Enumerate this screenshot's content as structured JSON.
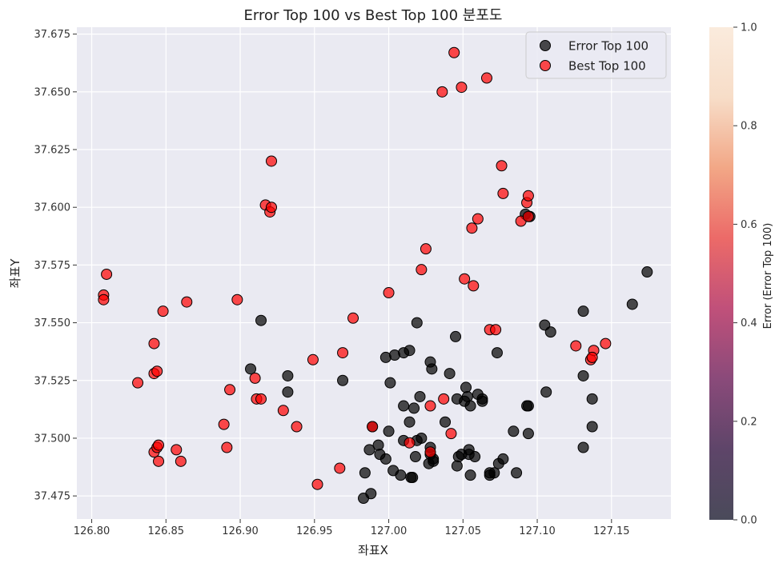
{
  "chart_data": {
    "type": "scatter",
    "title": "Error Top 100 vs Best Top 100 분포도",
    "xlabel": "좌표X",
    "ylabel": "좌표Y",
    "xlim": [
      126.79,
      127.19
    ],
    "ylim": [
      37.465,
      37.678
    ],
    "x_ticks": [
      126.8,
      126.85,
      126.9,
      126.95,
      127.0,
      127.05,
      127.1,
      127.15
    ],
    "x_tick_labels": [
      "126.80",
      "126.85",
      "126.90",
      "126.95",
      "127.00",
      "127.05",
      "127.10",
      "127.15"
    ],
    "y_ticks": [
      37.475,
      37.5,
      37.525,
      37.55,
      37.575,
      37.6,
      37.625,
      37.65,
      37.675
    ],
    "y_tick_labels": [
      "37.475",
      "37.500",
      "37.525",
      "37.550",
      "37.575",
      "37.600",
      "37.625",
      "37.650",
      "37.675"
    ],
    "grid": true,
    "legend_position": "top-right",
    "colors": {
      "plot_background": "#eaeaf2",
      "grid": "#ffffff",
      "error_series": "#000000",
      "best_series": "#ff0000",
      "marker_edge": "#000000"
    },
    "series": [
      {
        "name": "Error Top 100",
        "color": "#000000",
        "points": [
          [
            126.914,
            37.551
          ],
          [
            126.907,
            37.53
          ],
          [
            126.932,
            37.527
          ],
          [
            126.932,
            37.52
          ],
          [
            126.969,
            37.525
          ],
          [
            126.989,
            37.505
          ],
          [
            126.998,
            37.535
          ],
          [
            127.004,
            37.536
          ],
          [
            127.01,
            37.537
          ],
          [
            127.014,
            37.538
          ],
          [
            127.019,
            37.55
          ],
          [
            127.001,
            37.524
          ],
          [
            127.01,
            37.514
          ],
          [
            127.017,
            37.513
          ],
          [
            127.021,
            37.518
          ],
          [
            127.028,
            37.533
          ],
          [
            127.029,
            37.53
          ],
          [
            127.041,
            37.528
          ],
          [
            127.045,
            37.544
          ],
          [
            127.046,
            37.517
          ],
          [
            127.051,
            37.516
          ],
          [
            127.052,
            37.522
          ],
          [
            127.053,
            37.518
          ],
          [
            127.055,
            37.514
          ],
          [
            127.06,
            37.519
          ],
          [
            127.063,
            37.517
          ],
          [
            127.073,
            37.537
          ],
          [
            127.092,
            37.597
          ],
          [
            127.093,
            37.514
          ],
          [
            127.094,
            37.514
          ],
          [
            127.106,
            37.52
          ],
          [
            127.105,
            37.549
          ],
          [
            127.109,
            37.546
          ],
          [
            127.131,
            37.555
          ],
          [
            127.164,
            37.558
          ],
          [
            127.174,
            37.572
          ],
          [
            127.131,
            37.527
          ],
          [
            127.137,
            37.517
          ],
          [
            127.137,
            37.505
          ],
          [
            127.131,
            37.496
          ],
          [
            127.094,
            37.502
          ],
          [
            127.084,
            37.503
          ],
          [
            127.086,
            37.485
          ],
          [
            127.077,
            37.491
          ],
          [
            127.074,
            37.489
          ],
          [
            127.071,
            37.485
          ],
          [
            127.068,
            37.484
          ],
          [
            127.058,
            37.492
          ],
          [
            127.054,
            37.495
          ],
          [
            127.055,
            37.484
          ],
          [
            127.049,
            37.493
          ],
          [
            127.046,
            37.488
          ],
          [
            127.038,
            37.507
          ],
          [
            127.03,
            37.491
          ],
          [
            127.028,
            37.496
          ],
          [
            127.027,
            37.489
          ],
          [
            127.022,
            37.5
          ],
          [
            127.019,
            37.499
          ],
          [
            127.018,
            37.492
          ],
          [
            127.016,
            37.483
          ],
          [
            127.014,
            37.507
          ],
          [
            127.01,
            37.499
          ],
          [
            127.008,
            37.484
          ],
          [
            127.003,
            37.486
          ],
          [
            127.0,
            37.503
          ],
          [
            126.998,
            37.491
          ],
          [
            126.994,
            37.493
          ],
          [
            126.993,
            37.497
          ],
          [
            126.987,
            37.495
          ],
          [
            126.988,
            37.476
          ],
          [
            126.984,
            37.485
          ],
          [
            126.983,
            37.474
          ],
          [
            127.015,
            37.483
          ],
          [
            127.028,
            37.493
          ],
          [
            127.03,
            37.49
          ],
          [
            127.047,
            37.492
          ],
          [
            127.054,
            37.493
          ],
          [
            127.063,
            37.516
          ],
          [
            127.068,
            37.485
          ],
          [
            127.095,
            37.596
          ]
        ]
      },
      {
        "name": "Best Top 100",
        "color": "#ff0000",
        "points": [
          [
            126.808,
            37.562
          ],
          [
            126.808,
            37.56
          ],
          [
            126.81,
            37.571
          ],
          [
            126.831,
            37.524
          ],
          [
            126.842,
            37.541
          ],
          [
            126.842,
            37.528
          ],
          [
            126.844,
            37.529
          ],
          [
            126.848,
            37.555
          ],
          [
            126.864,
            37.559
          ],
          [
            126.842,
            37.494
          ],
          [
            126.844,
            37.496
          ],
          [
            126.845,
            37.497
          ],
          [
            126.845,
            37.49
          ],
          [
            126.857,
            37.495
          ],
          [
            126.86,
            37.49
          ],
          [
            126.889,
            37.506
          ],
          [
            126.891,
            37.496
          ],
          [
            126.893,
            37.521
          ],
          [
            126.898,
            37.56
          ],
          [
            126.91,
            37.526
          ],
          [
            126.911,
            37.517
          ],
          [
            126.914,
            37.517
          ],
          [
            126.917,
            37.601
          ],
          [
            126.92,
            37.598
          ],
          [
            126.921,
            37.6
          ],
          [
            126.921,
            37.62
          ],
          [
            126.929,
            37.512
          ],
          [
            126.938,
            37.505
          ],
          [
            126.949,
            37.534
          ],
          [
            126.952,
            37.48
          ],
          [
            126.967,
            37.487
          ],
          [
            126.969,
            37.537
          ],
          [
            126.976,
            37.552
          ],
          [
            126.989,
            37.505
          ],
          [
            127.0,
            37.563
          ],
          [
            127.014,
            37.498
          ],
          [
            127.022,
            37.573
          ],
          [
            127.025,
            37.582
          ],
          [
            127.028,
            37.514
          ],
          [
            127.028,
            37.494
          ],
          [
            127.036,
            37.65
          ],
          [
            127.037,
            37.517
          ],
          [
            127.042,
            37.502
          ],
          [
            127.044,
            37.667
          ],
          [
            127.049,
            37.652
          ],
          [
            127.051,
            37.569
          ],
          [
            127.056,
            37.591
          ],
          [
            127.057,
            37.566
          ],
          [
            127.06,
            37.595
          ],
          [
            127.066,
            37.656
          ],
          [
            127.068,
            37.547
          ],
          [
            127.072,
            37.547
          ],
          [
            127.076,
            37.618
          ],
          [
            127.077,
            37.606
          ],
          [
            127.089,
            37.594
          ],
          [
            127.093,
            37.602
          ],
          [
            127.094,
            37.605
          ],
          [
            127.094,
            37.596
          ],
          [
            127.126,
            37.54
          ],
          [
            127.136,
            37.534
          ],
          [
            127.138,
            37.538
          ],
          [
            127.146,
            37.541
          ],
          [
            127.137,
            37.535
          ]
        ]
      }
    ],
    "colorbar": {
      "label": "Error (Error Top 100)",
      "range": [
        0,
        1
      ],
      "ticks": [
        0.0,
        0.2,
        0.4,
        0.6,
        0.8,
        1.0
      ],
      "tick_labels": [
        "0.0",
        "0.2",
        "0.4",
        "0.6",
        "0.8",
        "1.0"
      ],
      "stops": [
        "#4a4a5a",
        "#5e4569",
        "#8a4a7a",
        "#c0507a",
        "#ec6a68",
        "#f2a786",
        "#f7ddc8",
        "#faebdd"
      ]
    }
  }
}
